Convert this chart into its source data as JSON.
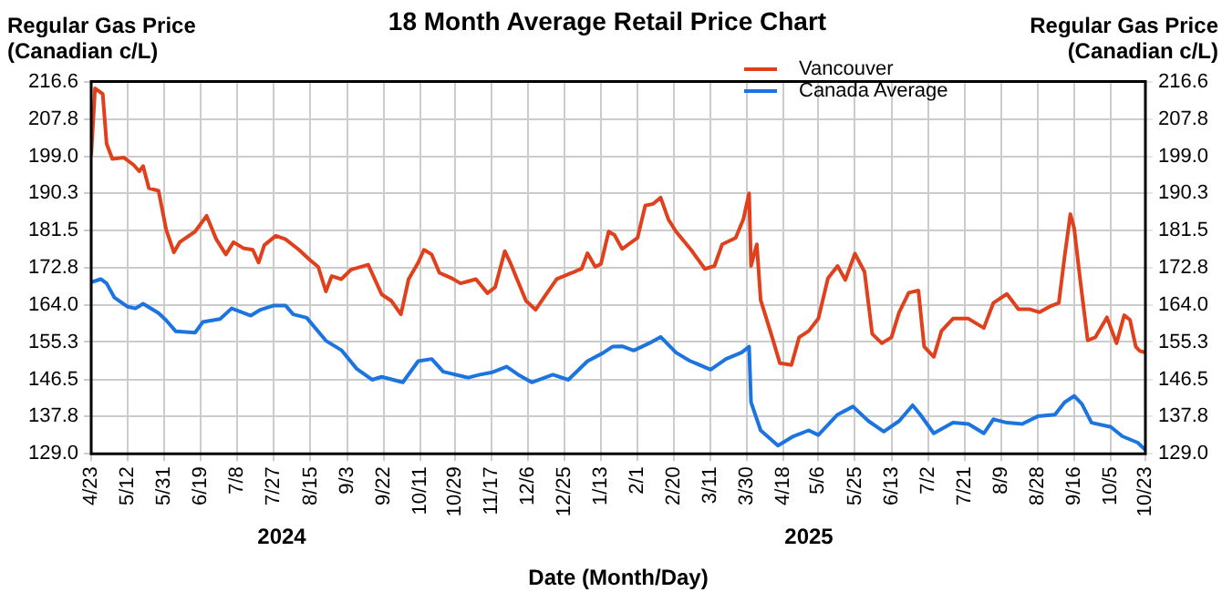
{
  "chart_data": {
    "type": "line",
    "title": "18 Month Average Retail Price Chart",
    "xlabel": "Date (Month/Day)",
    "ylabel": "Regular Gas Price (Canadian c/L)",
    "y2label": "Regular Gas Price (Canadian c/L)",
    "xlim": [
      "2024-04-23",
      "2025-10-23"
    ],
    "xticks": [
      {
        "value": "2024-04-23",
        "label": "4/23"
      },
      {
        "value": "2024-05-12",
        "label": "5/12"
      },
      {
        "value": "2024-05-31",
        "label": "5/31"
      },
      {
        "value": "2024-06-19",
        "label": "6/19"
      },
      {
        "value": "2024-07-08",
        "label": "7/8"
      },
      {
        "value": "2024-07-27",
        "label": "7/27"
      },
      {
        "value": "2024-08-15",
        "label": "8/15"
      },
      {
        "value": "2024-09-03",
        "label": "9/3"
      },
      {
        "value": "2024-09-22",
        "label": "9/22"
      },
      {
        "value": "2024-10-11",
        "label": "10/11"
      },
      {
        "value": "2024-10-29",
        "label": "10/29"
      },
      {
        "value": "2024-11-17",
        "label": "11/17"
      },
      {
        "value": "2024-12-06",
        "label": "12/6"
      },
      {
        "value": "2024-12-25",
        "label": "12/25"
      },
      {
        "value": "2025-01-13",
        "label": "1/13"
      },
      {
        "value": "2025-02-01",
        "label": "2/1"
      },
      {
        "value": "2025-02-20",
        "label": "2/20"
      },
      {
        "value": "2025-03-11",
        "label": "3/11"
      },
      {
        "value": "2025-03-30",
        "label": "3/30"
      },
      {
        "value": "2025-04-18",
        "label": "4/18"
      },
      {
        "value": "2025-05-06",
        "label": "5/6"
      },
      {
        "value": "2025-05-25",
        "label": "5/25"
      },
      {
        "value": "2025-06-13",
        "label": "6/13"
      },
      {
        "value": "2025-07-02",
        "label": "7/2"
      },
      {
        "value": "2025-07-21",
        "label": "7/21"
      },
      {
        "value": "2025-08-09",
        "label": "8/9"
      },
      {
        "value": "2025-08-28",
        "label": "8/28"
      },
      {
        "value": "2025-09-16",
        "label": "9/16"
      },
      {
        "value": "2025-10-05",
        "label": "10/5"
      },
      {
        "value": "2025-10-23",
        "label": "10/23"
      }
    ],
    "ylim": [
      129,
      216.6
    ],
    "yticks": [
      {
        "value": 129,
        "label": "129.0"
      },
      137.8,
      146.5,
      155.3,
      {
        "value": 164,
        "label": "164.0"
      },
      172.8,
      181.5,
      190.3,
      {
        "value": 199,
        "label": "199.0"
      },
      207.8,
      216.6
    ],
    "y2lim": [
      129,
      216.6
    ],
    "y2ticks": [
      {
        "value": 129,
        "label": "129.0"
      },
      137.8,
      146.5,
      155.3,
      {
        "value": 164,
        "label": "164.0"
      },
      172.8,
      181.5,
      190.3,
      {
        "value": 199,
        "label": "199.0"
      },
      207.8,
      216.6
    ],
    "grid": true,
    "legend": "top right",
    "marker": "none",
    "line_style": "solid",
    "annotations": [
      "2024",
      "2025"
    ],
    "series": [
      {
        "name": "Vancouver",
        "color": "#e0401c",
        "x": [
          "2024-04-23",
          "2024-04-25",
          "2024-04-29",
          "2024-05-01",
          "2024-05-04",
          "2024-05-10",
          "2024-05-15",
          "2024-05-18",
          "2024-05-20",
          "2024-05-23",
          "2024-05-28",
          "2024-06-01",
          "2024-06-05",
          "2024-06-08",
          "2024-06-16",
          "2024-06-22",
          "2024-06-27",
          "2024-07-02",
          "2024-07-06",
          "2024-07-11",
          "2024-07-16",
          "2024-07-19",
          "2024-07-22",
          "2024-07-28",
          "2024-08-02",
          "2024-08-09",
          "2024-08-15",
          "2024-08-19",
          "2024-08-23",
          "2024-08-26",
          "2024-08-31",
          "2024-09-05",
          "2024-09-14",
          "2024-09-21",
          "2024-09-26",
          "2024-10-01",
          "2024-10-05",
          "2024-10-10",
          "2024-10-13",
          "2024-10-17",
          "2024-10-21",
          "2024-10-27",
          "2024-11-01",
          "2024-11-09",
          "2024-11-15",
          "2024-11-19",
          "2024-11-24",
          "2024-11-27",
          "2024-12-01",
          "2024-12-05",
          "2024-12-10",
          "2024-12-15",
          "2024-12-21",
          "2024-12-29",
          "2025-01-03",
          "2025-01-06",
          "2025-01-10",
          "2025-01-13",
          "2025-01-17",
          "2025-01-20",
          "2025-01-24",
          "2025-02-01",
          "2025-02-05",
          "2025-02-09",
          "2025-02-13",
          "2025-02-17",
          "2025-02-21",
          "2025-03-01",
          "2025-03-08",
          "2025-03-13",
          "2025-03-17",
          "2025-03-24",
          "2025-03-28",
          "2025-03-31",
          "2025-04-01",
          "2025-04-04",
          "2025-04-06",
          "2025-04-12",
          "2025-04-16",
          "2025-04-22",
          "2025-04-26",
          "2025-05-01",
          "2025-05-06",
          "2025-05-11",
          "2025-05-16",
          "2025-05-20",
          "2025-05-25",
          "2025-05-30",
          "2025-06-03",
          "2025-06-08",
          "2025-06-13",
          "2025-06-17",
          "2025-06-22",
          "2025-06-27",
          "2025-06-30",
          "2025-07-05",
          "2025-07-09",
          "2025-07-15",
          "2025-07-23",
          "2025-07-31",
          "2025-08-05",
          "2025-08-12",
          "2025-08-18",
          "2025-08-24",
          "2025-08-29",
          "2025-09-04",
          "2025-09-08",
          "2025-09-11",
          "2025-09-14",
          "2025-09-16",
          "2025-09-19",
          "2025-09-23",
          "2025-09-27",
          "2025-10-03",
          "2025-10-08",
          "2025-10-12",
          "2025-10-15",
          "2025-10-18",
          "2025-10-20",
          "2025-10-23"
        ],
        "values": [
          199.2,
          215,
          213.7,
          202,
          198.4,
          198.7,
          197,
          195.5,
          196.7,
          191.5,
          190.9,
          181.7,
          176.4,
          178.8,
          181.3,
          185,
          179.5,
          175.9,
          178.8,
          177.4,
          177,
          174,
          178.1,
          180.3,
          179.5,
          177,
          174.5,
          173,
          167.2,
          170.8,
          170.1,
          172.3,
          173.5,
          166.5,
          165,
          161.8,
          170.1,
          174,
          177,
          175.9,
          171.6,
          170.4,
          169.1,
          170.1,
          166.8,
          168.2,
          176.7,
          173.8,
          169.4,
          165,
          162.9,
          166.2,
          170.1,
          171.6,
          172.6,
          176.2,
          173,
          173.7,
          181.3,
          180.5,
          177.2,
          179.8,
          187.4,
          187.8,
          189.3,
          184.2,
          181.3,
          176.9,
          172.5,
          173.2,
          178.3,
          179.8,
          184.2,
          190.3,
          173.2,
          178.3,
          165.2,
          156.4,
          150.3,
          149.9,
          156.4,
          157.9,
          160.8,
          170.3,
          173.2,
          169.9,
          176.1,
          171.8,
          157.2,
          155,
          156.4,
          162.3,
          166.9,
          167.4,
          154.2,
          151.8,
          157.9,
          160.8,
          160.8,
          158.6,
          164.5,
          166.6,
          163,
          163,
          162.3,
          163.8,
          164.5,
          175.4,
          185.4,
          182,
          170.3,
          155.7,
          156.4,
          161.1,
          155,
          161.6,
          160.5,
          154.2,
          153.2,
          152.8
        ]
      },
      {
        "name": "Canada Average",
        "color": "#1c74e0",
        "x": [
          "2024-04-23",
          "2024-04-28",
          "2024-05-01",
          "2024-05-05",
          "2024-05-12",
          "2024-05-16",
          "2024-05-20",
          "2024-05-28",
          "2024-06-01",
          "2024-06-06",
          "2024-06-16",
          "2024-06-20",
          "2024-06-29",
          "2024-07-05",
          "2024-07-15",
          "2024-07-20",
          "2024-07-27",
          "2024-08-02",
          "2024-08-06",
          "2024-08-13",
          "2024-08-23",
          "2024-08-31",
          "2024-09-08",
          "2024-09-16",
          "2024-09-21",
          "2024-10-02",
          "2024-10-10",
          "2024-10-17",
          "2024-10-23",
          "2024-11-05",
          "2024-11-11",
          "2024-11-17",
          "2024-11-25",
          "2024-12-01",
          "2024-12-08",
          "2024-12-19",
          "2024-12-27",
          "2025-01-06",
          "2025-01-14",
          "2025-01-19",
          "2025-01-24",
          "2025-01-30",
          "2025-02-07",
          "2025-02-13",
          "2025-02-21",
          "2025-02-28",
          "2025-03-11",
          "2025-03-19",
          "2025-03-27",
          "2025-03-31",
          "2025-04-01",
          "2025-04-06",
          "2025-04-15",
          "2025-04-23",
          "2025-05-01",
          "2025-05-06",
          "2025-05-16",
          "2025-05-24",
          "2025-06-01",
          "2025-06-09",
          "2025-06-17",
          "2025-06-24",
          "2025-06-28",
          "2025-07-05",
          "2025-07-15",
          "2025-07-23",
          "2025-07-31",
          "2025-08-05",
          "2025-08-12",
          "2025-08-20",
          "2025-08-28",
          "2025-09-06",
          "2025-09-11",
          "2025-09-16",
          "2025-09-20",
          "2025-09-25",
          "2025-10-05",
          "2025-10-11",
          "2025-10-19",
          "2025-10-23"
        ],
        "values": [
          169.4,
          170.1,
          169.1,
          165.8,
          163.6,
          163.2,
          164.3,
          162.1,
          160.4,
          157.8,
          157.5,
          160,
          160.7,
          163.2,
          161.5,
          162.9,
          163.9,
          163.9,
          161.8,
          161,
          155.6,
          153.4,
          149,
          146.4,
          147.1,
          145.8,
          150.8,
          151.3,
          148.3,
          146.9,
          147.6,
          148.1,
          149.5,
          147.6,
          145.8,
          147.6,
          146.4,
          150.8,
          152.7,
          154.2,
          154.3,
          153.3,
          155,
          156.5,
          152.8,
          150.9,
          148.8,
          151.3,
          152.8,
          154.2,
          141.1,
          134.5,
          130.9,
          133.1,
          134.5,
          133.4,
          138.2,
          140.1,
          136.7,
          134.2,
          136.7,
          140.4,
          138.2,
          133.8,
          136.3,
          136,
          133.8,
          137.1,
          136.3,
          136,
          137.8,
          138.2,
          141.1,
          142.6,
          140.7,
          136.3,
          135.3,
          133.1,
          131.6,
          129.9
        ]
      }
    ]
  }
}
